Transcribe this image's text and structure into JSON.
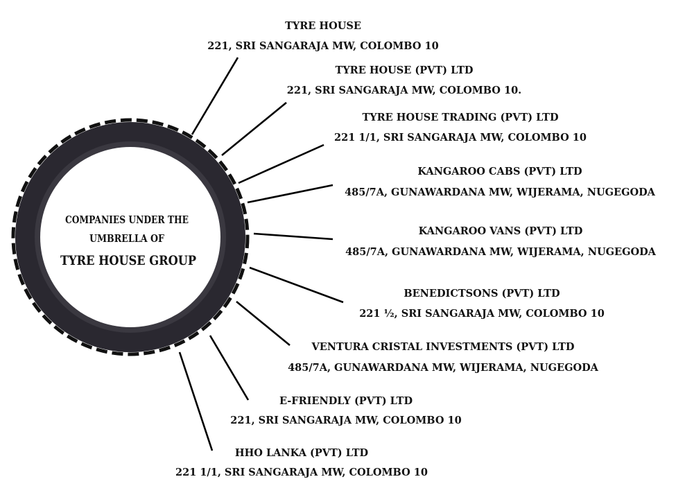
{
  "center": {
    "line1": "COMPANIES UNDER THE",
    "line2": "UMBRELLA OF",
    "line3": "TYRE HOUSE GROUP"
  },
  "colors": {
    "tyre": "#2a2830",
    "tread": "#111111",
    "connector": "#000000",
    "text": "#111111"
  },
  "companies": [
    {
      "name": "TYRE HOUSE",
      "address": "221, SRI SANGARAJA MW, COLOMBO 10"
    },
    {
      "name": "TYRE HOUSE (PVT) LTD",
      "address": "221, SRI SANGARAJA MW, COLOMBO 10."
    },
    {
      "name": "TYRE HOUSE TRADING (PVT) LTD",
      "address": "221 1/1, SRI SANGARAJA MW, COLOMBO 10"
    },
    {
      "name": "KANGAROO CABS (PVT) LTD",
      "address": "485/7A, GUNAWARDANA MW, WIJERAMA, NUGEGODA"
    },
    {
      "name": "KANGAROO VANS (PVT) LTD",
      "address": "485/7A, GUNAWARDANA MW, WIJERAMA, NUGEGODA"
    },
    {
      "name": "BENEDICTSONS (PVT) LTD",
      "address": "221 ½, SRI SANGARAJA MW, COLOMBO 10"
    },
    {
      "name": "VENTURA CRISTAL INVESTMENTS (PVT) LTD",
      "address": "485/7A, GUNAWARDANA MW, WIJERAMA, NUGEGODA"
    },
    {
      "name": "E-FRIENDLY (PVT) LTD",
      "address": "221, SRI SANGARAJA MW, COLOMBO 10"
    },
    {
      "name": "HHO LANKA (PVT) LTD",
      "address": "221 1/1, SRI SANGARAJA MW, COLOMBO 10"
    }
  ]
}
